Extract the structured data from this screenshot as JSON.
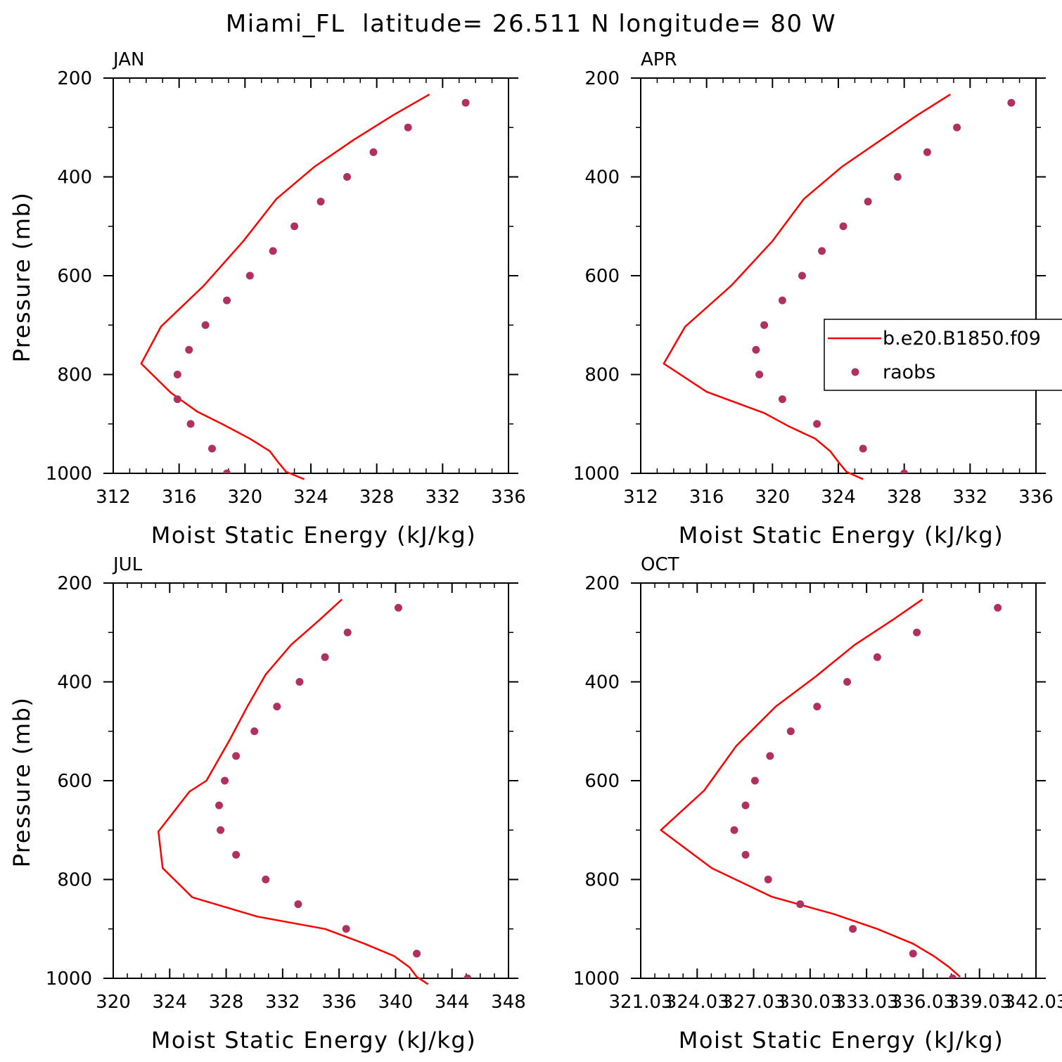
{
  "title": "Miami_FL  latitude= 26.511 N longitude= 80 W",
  "colors": {
    "model": "#ff0000",
    "obs": "#b03060",
    "axis": "#000000"
  },
  "legend": {
    "model_label": "b.e20.B1850.f09",
    "obs_label": "raobs"
  },
  "chart_data": [
    {
      "type": "line",
      "panel": "JAN",
      "title": "JAN",
      "xlabel": "Moist Static Energy (kJ/kg)",
      "ylabel": "Pressure (mb)",
      "xlim": [
        312,
        336
      ],
      "ylim": [
        1000,
        200
      ],
      "xticks": [
        "312",
        "316",
        "320",
        "324",
        "328",
        "332",
        "336"
      ],
      "yticks": [
        "200",
        "400",
        "600",
        "800",
        "1000"
      ],
      "series": [
        {
          "kind": "line",
          "x": [
            331.2,
            329.0,
            326.6,
            324.2,
            321.9,
            319.9,
            317.5,
            314.9,
            313.7,
            315.5,
            317.1,
            318.6,
            320.3,
            321.5,
            322.0,
            322.5,
            323.6
          ],
          "y": [
            233,
            275,
            325,
            380,
            445,
            530,
            620,
            703,
            778,
            837,
            875,
            900,
            930,
            955,
            977,
            997,
            1012
          ]
        },
        {
          "kind": "scatter",
          "x": [
            333.4,
            329.9,
            327.8,
            326.2,
            324.6,
            323.0,
            321.7,
            320.3,
            318.9,
            317.6,
            316.6,
            315.9,
            315.9,
            316.7,
            318.0,
            318.9
          ],
          "y": [
            250,
            300,
            350,
            400,
            450,
            500,
            550,
            600,
            650,
            700,
            750,
            800,
            850,
            900,
            950,
            1000
          ]
        }
      ]
    },
    {
      "type": "line",
      "panel": "APR",
      "title": "APR",
      "xlabel": "Moist Static Energy (kJ/kg)",
      "ylabel": "",
      "xlim": [
        312,
        336
      ],
      "ylim": [
        1000,
        200
      ],
      "xticks": [
        "312",
        "316",
        "320",
        "324",
        "328",
        "332",
        "336"
      ],
      "yticks": [
        "200",
        "400",
        "600",
        "800",
        "1000"
      ],
      "series": [
        {
          "kind": "line",
          "x": [
            330.8,
            328.8,
            326.6,
            324.2,
            321.9,
            320.0,
            317.5,
            314.7,
            313.4,
            316.0,
            319.5,
            321.0,
            322.6,
            323.5,
            324.0,
            324.5,
            325.5
          ],
          "y": [
            233,
            275,
            325,
            380,
            445,
            530,
            620,
            703,
            778,
            835,
            878,
            905,
            930,
            955,
            977,
            997,
            1012
          ]
        },
        {
          "kind": "scatter",
          "x": [
            334.5,
            331.2,
            329.4,
            327.6,
            325.8,
            324.3,
            323.0,
            321.8,
            320.6,
            319.5,
            319.0,
            319.2,
            320.6,
            322.7,
            325.5,
            328.0
          ],
          "y": [
            250,
            300,
            350,
            400,
            450,
            500,
            550,
            600,
            650,
            700,
            750,
            800,
            850,
            900,
            950,
            1000
          ]
        }
      ]
    },
    {
      "type": "line",
      "panel": "JUL",
      "title": "JUL",
      "xlabel": "Moist Static Energy (kJ/kg)",
      "ylabel": "Pressure (mb)",
      "xlim": [
        320,
        348
      ],
      "ylim": [
        1000,
        200
      ],
      "xticks": [
        "320",
        "324",
        "328",
        "332",
        "336",
        "340",
        "344",
        "348"
      ],
      "yticks": [
        "200",
        "400",
        "600",
        "800",
        "1000"
      ],
      "series": [
        {
          "kind": "line",
          "x": [
            336.2,
            334.6,
            332.6,
            330.8,
            329.5,
            328.2,
            326.6,
            325.4,
            323.2,
            323.5,
            325.6,
            330.2,
            335.0,
            337.8,
            339.9,
            341.0,
            341.5,
            342.3
          ],
          "y": [
            233,
            275,
            325,
            385,
            450,
            520,
            600,
            622,
            703,
            777,
            836,
            875,
            900,
            930,
            955,
            978,
            997,
            1012
          ]
        },
        {
          "kind": "scatter",
          "x": [
            340.2,
            336.6,
            335.0,
            333.2,
            331.6,
            330.0,
            328.7,
            327.9,
            327.5,
            327.6,
            328.7,
            330.8,
            333.1,
            336.5,
            341.5,
            345.1
          ],
          "y": [
            250,
            300,
            350,
            400,
            450,
            500,
            550,
            600,
            650,
            700,
            750,
            800,
            850,
            900,
            950,
            1000
          ]
        }
      ]
    },
    {
      "type": "line",
      "panel": "OCT",
      "title": "OCT",
      "xlabel": "Moist Static Energy (kJ/kg)",
      "ylabel": "",
      "xlim": [
        321.03,
        342.03
      ],
      "ylim": [
        1000,
        200
      ],
      "xticks": [
        "321.03",
        "324.03",
        "327.03",
        "330.03",
        "333.03",
        "336.03",
        "339.03",
        "342.03"
      ],
      "yticks": [
        "200",
        "400",
        "600",
        "800",
        "1000"
      ],
      "series": [
        {
          "kind": "line",
          "x": [
            336.0,
            334.4,
            332.4,
            330.3,
            328.2,
            326.1,
            324.4,
            322.1,
            324.8,
            328.0,
            331.3,
            333.6,
            335.5,
            336.6,
            337.4,
            338.0
          ],
          "y": [
            233,
            275,
            325,
            390,
            450,
            530,
            620,
            700,
            777,
            835,
            870,
            900,
            930,
            955,
            977,
            997
          ]
        },
        {
          "kind": "scatter",
          "x": [
            340.0,
            335.7,
            333.6,
            332.0,
            330.4,
            329.0,
            327.9,
            327.1,
            326.6,
            326.0,
            326.6,
            327.8,
            329.5,
            332.3,
            335.5,
            337.6
          ],
          "y": [
            250,
            300,
            350,
            400,
            450,
            500,
            550,
            600,
            650,
            700,
            750,
            800,
            850,
            900,
            950,
            1000
          ]
        }
      ]
    }
  ]
}
